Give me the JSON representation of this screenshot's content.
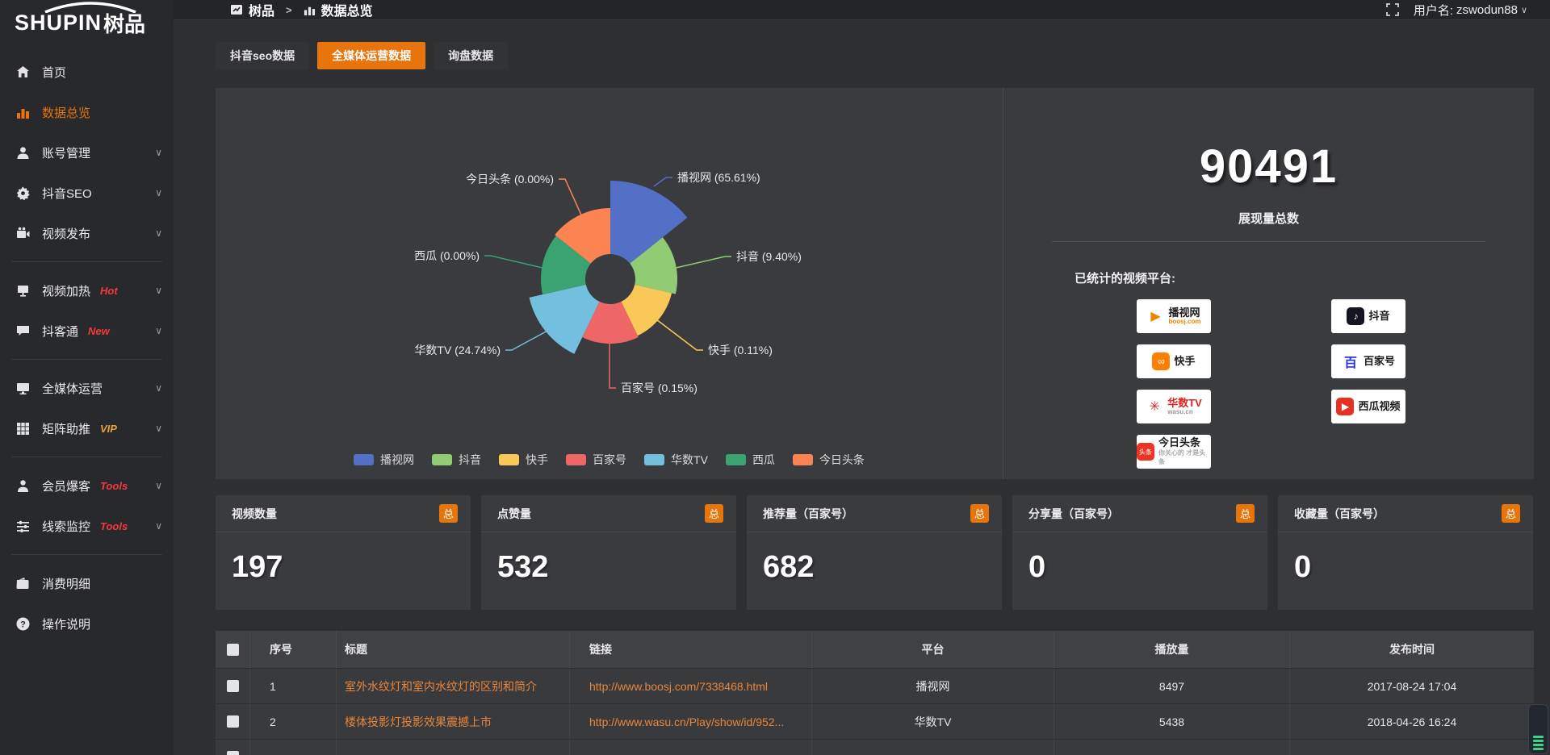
{
  "app": {
    "logo_en": "SHUPIN",
    "logo_cn": "树品"
  },
  "topbar": {
    "breadcrumb": [
      {
        "label": "树品"
      },
      {
        "label": "数据总览"
      }
    ],
    "user_label": "用户名:",
    "username": "zswodun88"
  },
  "sidebar": {
    "items": [
      {
        "icon": "home-icon",
        "label": "首页"
      },
      {
        "icon": "chart-icon",
        "label": "数据总览",
        "active": true
      },
      {
        "icon": "user-icon",
        "label": "账号管理",
        "chevron": true
      },
      {
        "icon": "gear-icon",
        "label": "抖音SEO",
        "chevron": true
      },
      {
        "icon": "video-icon",
        "label": "视频发布",
        "chevron": true,
        "divider_after": true
      },
      {
        "icon": "fire-icon",
        "label": "视频加热",
        "badge": "Hot",
        "badge_color": "#f5383f",
        "chevron": true
      },
      {
        "icon": "chat-icon",
        "label": "抖客通",
        "badge": "New",
        "badge_color": "#f5383f",
        "chevron": true,
        "divider_after": true
      },
      {
        "icon": "monitor-icon",
        "label": "全媒体运营",
        "chevron": true
      },
      {
        "icon": "grid-icon",
        "label": "矩阵助推",
        "badge": "VIP",
        "badge_color": "#e9a23b",
        "chevron": true,
        "divider_after": true
      },
      {
        "icon": "person-icon",
        "label": "会员爆客",
        "badge": "Tools",
        "badge_color": "#f5383f",
        "chevron": true
      },
      {
        "icon": "sliders-icon",
        "label": "线索监控",
        "badge": "Tools",
        "badge_color": "#f5383f",
        "chevron": true,
        "divider_after": true
      },
      {
        "icon": "wallet-icon",
        "label": "消费明细"
      },
      {
        "icon": "question-icon",
        "label": "操作说明"
      }
    ]
  },
  "tabs": [
    {
      "label": "抖音seo数据",
      "active": false
    },
    {
      "label": "全媒体运营数据",
      "active": true
    },
    {
      "label": "询盘数据",
      "active": false
    }
  ],
  "chart_data": {
    "type": "pie",
    "subtype": "nightingale-rose",
    "title": "",
    "label_format": "{name} ({pct}%)",
    "legend_position": "bottom",
    "inner_radius": 31,
    "series": [
      {
        "name": "播视网",
        "pct": "65.61",
        "color": "#5470c6",
        "display_radius": 122
      },
      {
        "name": "抖音",
        "pct": "9.40",
        "color": "#91cc75",
        "display_radius": 83
      },
      {
        "name": "快手",
        "pct": "0.11",
        "color": "#fac858",
        "display_radius": 78
      },
      {
        "name": "百家号",
        "pct": "0.15",
        "color": "#ee6666",
        "display_radius": 80
      },
      {
        "name": "华数TV",
        "pct": "24.74",
        "color": "#73c0de",
        "display_radius": 103
      },
      {
        "name": "西瓜",
        "pct": "0.00",
        "color": "#3ba272",
        "display_radius": 86
      },
      {
        "name": "今日头条",
        "pct": "0.00",
        "color": "#fc8452",
        "display_radius": 88
      }
    ]
  },
  "summary": {
    "total": "90491",
    "total_label": "展现量总数",
    "platforms_label": "已统计的视频平台:",
    "platform_columns": [
      [
        {
          "icon": "boosj-icon",
          "icon_glyph": "▶",
          "icon_bg": "#fff",
          "icon_color": "#f08200",
          "name": "播视网",
          "sub": "boosj.com",
          "sub_color": "#f08200"
        },
        {
          "icon": "kuaishou-icon",
          "icon_glyph": "∞",
          "icon_bg": "#ff7f00",
          "icon_color": "#fff",
          "name": "快手",
          "sub": ""
        },
        {
          "icon": "wasu-icon",
          "icon_glyph": "✳",
          "icon_bg": "#fff",
          "icon_color": "#e02420",
          "name": "华数TV",
          "name_color": "#e02420",
          "sub": "wasu.cn",
          "sub_color": "#999"
        },
        {
          "icon": "toutiao-icon",
          "icon_glyph": "头条",
          "icon_bg": "#ed3323",
          "icon_color": "#fff",
          "name": "今日头条",
          "sub": "你关心的 才是头条",
          "sub_color": "#aaa"
        }
      ],
      [
        {
          "icon": "douyin-icon",
          "icon_glyph": "♪",
          "icon_bg": "#161622",
          "icon_color": "#fff",
          "name": "抖音",
          "sub": ""
        },
        {
          "icon": "baijiahao-icon",
          "icon_glyph": "百",
          "icon_bg": "#fff",
          "icon_color": "#2932e1",
          "name": "百家号",
          "sub": ""
        },
        {
          "icon": "xigua-icon",
          "icon_glyph": "▶",
          "icon_bg": "#e63021",
          "icon_color": "#fff",
          "name": "西瓜视频",
          "sub": ""
        }
      ]
    ]
  },
  "stat_cards": [
    {
      "title": "视频数量",
      "badge": "总",
      "value": "197"
    },
    {
      "title": "点赞量",
      "badge": "总",
      "value": "532"
    },
    {
      "title": "推荐量（百家号）",
      "badge": "总",
      "value": "682"
    },
    {
      "title": "分享量（百家号）",
      "badge": "总",
      "value": "0"
    },
    {
      "title": "收藏量（百家号）",
      "badge": "总",
      "value": "0"
    }
  ],
  "table": {
    "headers": {
      "idx": "序号",
      "title": "标题",
      "link": "链接",
      "platform": "平台",
      "plays": "播放量",
      "time": "发布时间"
    },
    "rows": [
      {
        "idx": "1",
        "title": "室外水纹灯和室内水纹灯的区别和简介",
        "link": "http://www.boosj.com/7338468.html",
        "platform": "播视网",
        "plays": "8497",
        "time": "2017-08-24 17:04"
      },
      {
        "idx": "2",
        "title": "楼体投影灯投影效果震撼上市",
        "link": "http://www.wasu.cn/Play/show/id/952...",
        "platform": "华数TV",
        "plays": "5438",
        "time": "2018-04-26 16:24"
      }
    ],
    "has_partial_next_row": true
  },
  "colors": {
    "accent": "#e8740c",
    "link": "#e8863b",
    "panel": "#3a3b3e"
  }
}
